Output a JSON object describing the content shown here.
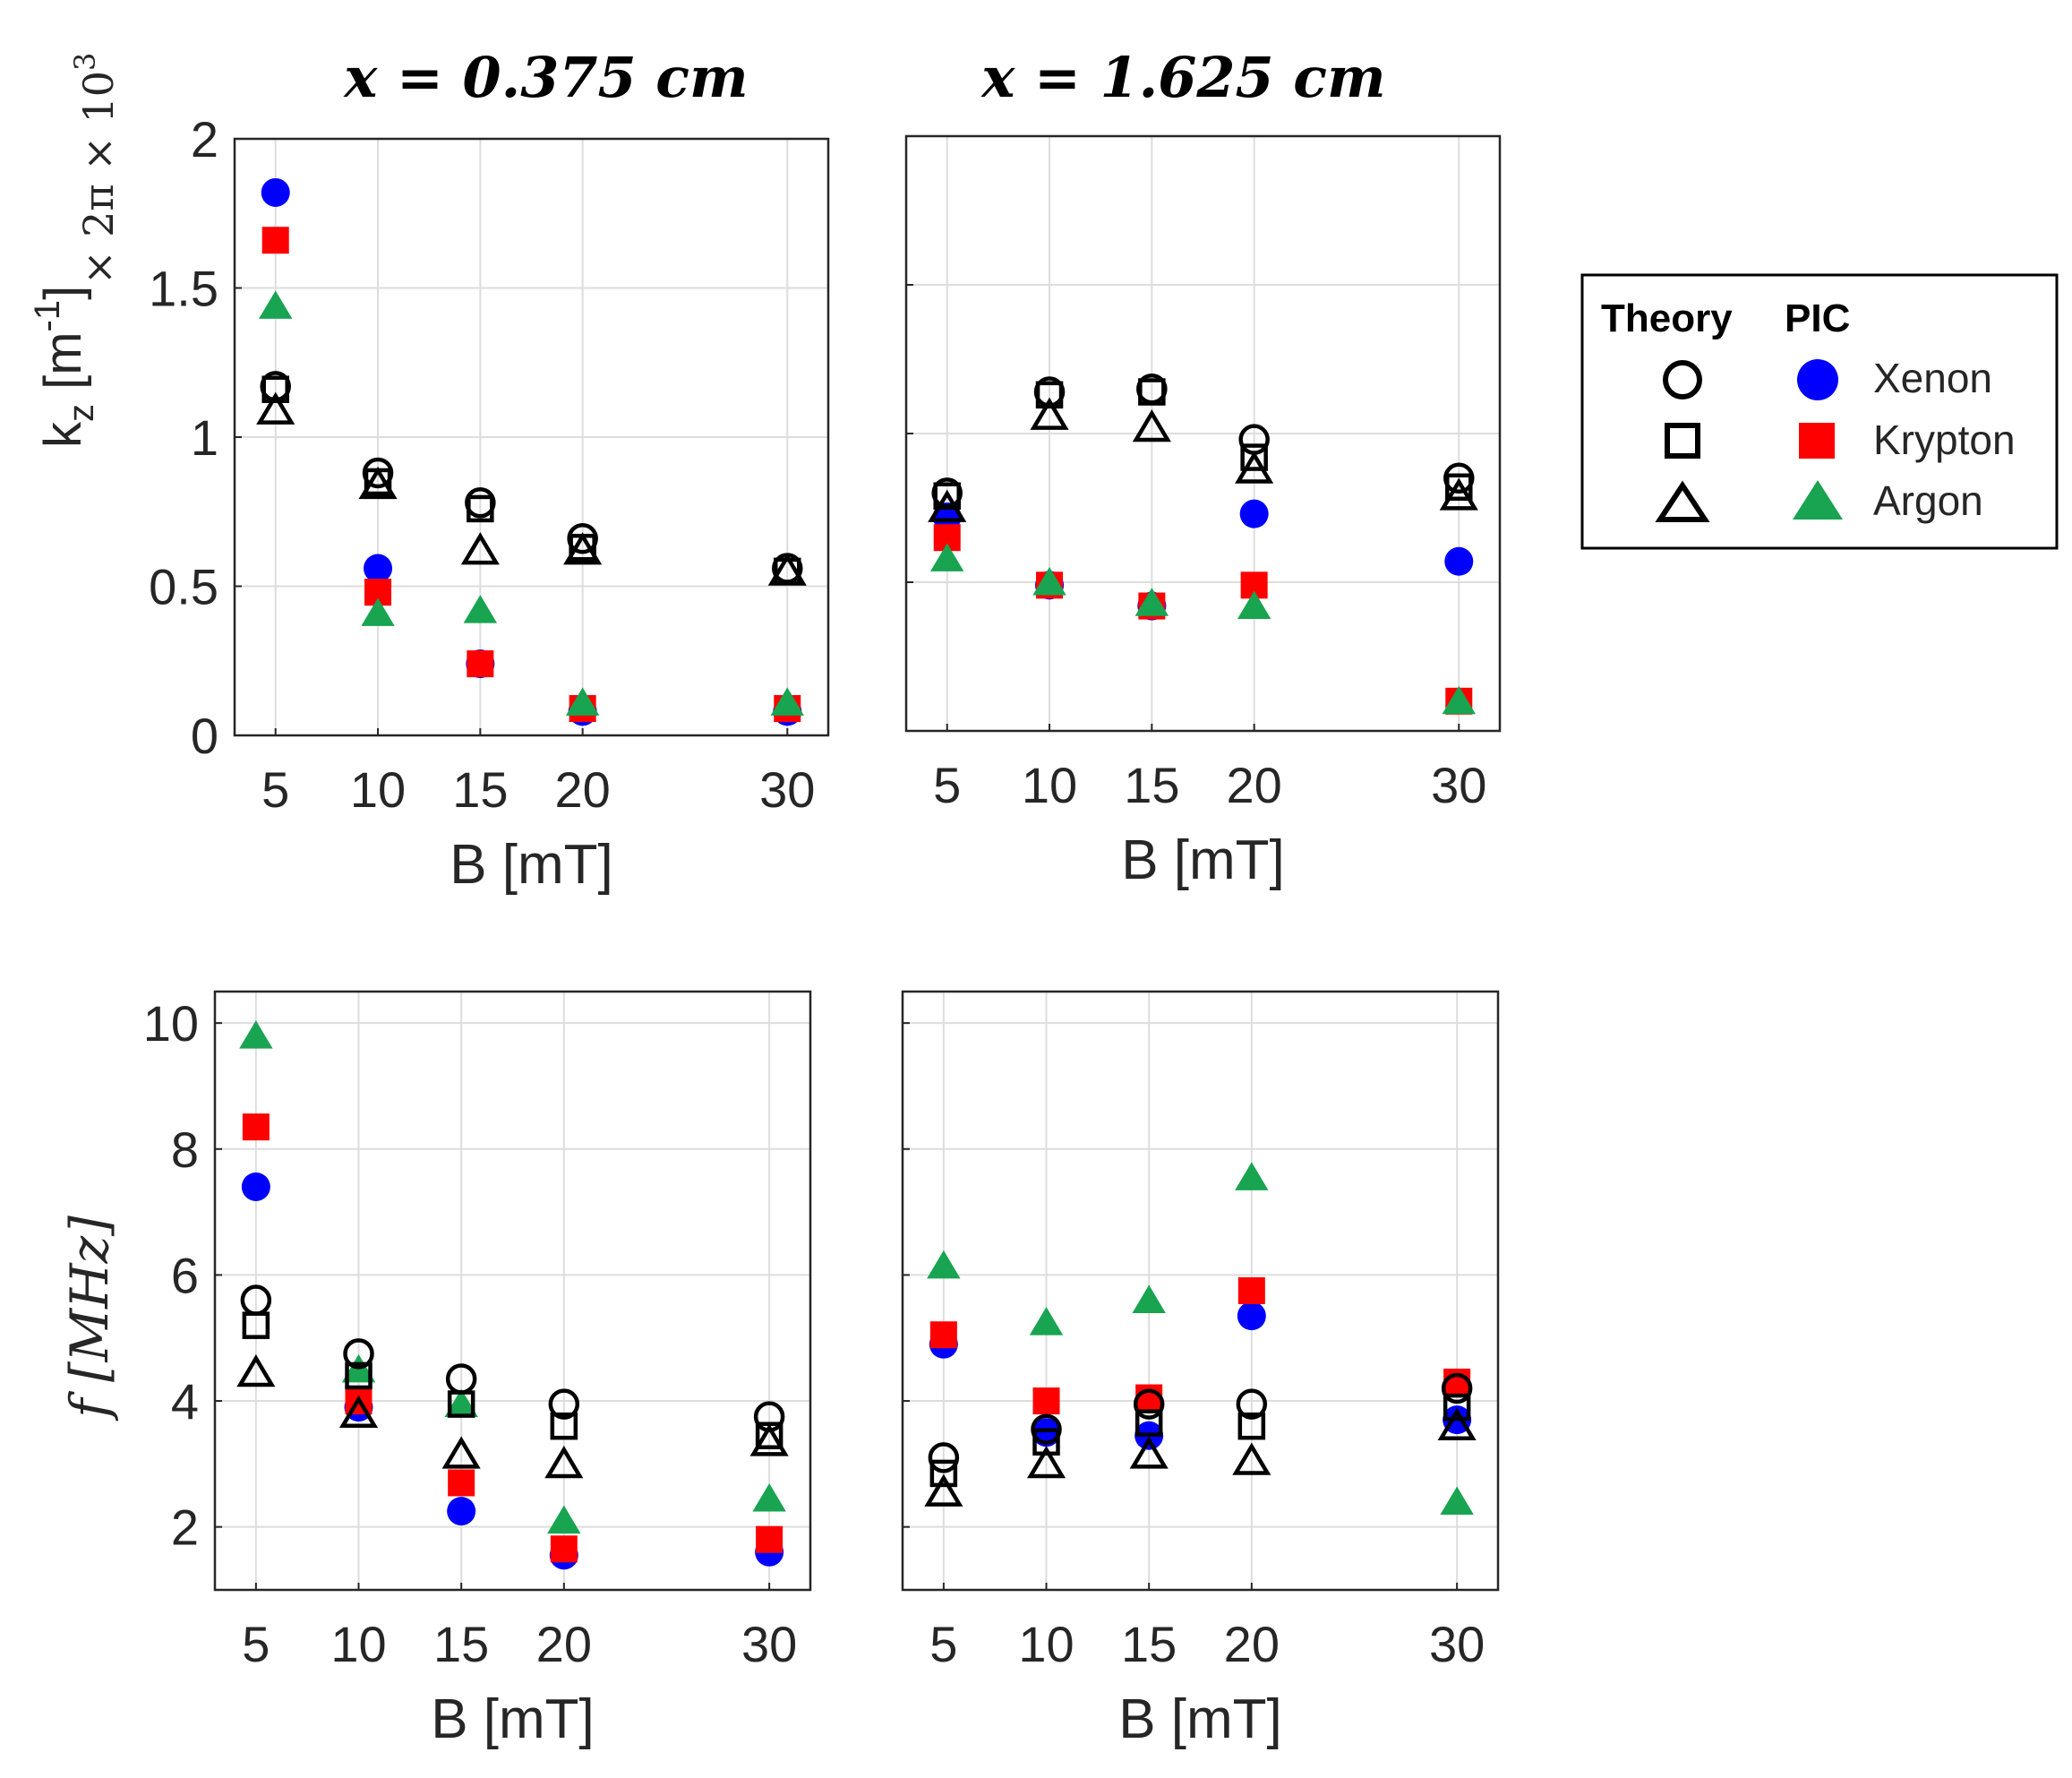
{
  "colors": {
    "xenon": "#0000ff",
    "krypton": "#ff0000",
    "argon": "#18a450",
    "theory": "#000000",
    "grid": "#dddddd",
    "axis": "#262626"
  },
  "legend": {
    "theory_header": "Theory",
    "pic_header": "PIC",
    "entries": [
      {
        "label": "Xenon",
        "theory_marker": "circle",
        "pic_marker": "circle",
        "pic_color": "#0000ff"
      },
      {
        "label": "Krypton",
        "theory_marker": "square",
        "pic_marker": "square",
        "pic_color": "#ff0000"
      },
      {
        "label": "Argon",
        "theory_marker": "triangle",
        "pic_marker": "triangle",
        "pic_color": "#18a450"
      }
    ]
  },
  "column_titles": [
    "x = 0.375 cm",
    "x = 1.625 cm"
  ],
  "chart_data": [
    {
      "type": "scatter",
      "title": "x = 0.375 cm",
      "xlabel": "B [mT]",
      "ylabel_main": "k",
      "ylabel_sub": "z",
      "ylabel_unit": " [m",
      "ylabel_exp": "-1",
      "ylabel_close": "]",
      "y_multiplier": "× 2π × 10",
      "y_multiplier_exp": "3",
      "x": [
        5,
        10,
        15,
        20,
        30
      ],
      "xlim": [
        3,
        32
      ],
      "ylim": [
        0,
        2
      ],
      "xticks": [
        "5",
        "10",
        "15",
        "20",
        "30"
      ],
      "yticks": [
        "0",
        "0.5",
        "1",
        "1.5",
        "2"
      ],
      "ytick_values": [
        0,
        0.5,
        1,
        1.5,
        2
      ],
      "series": [
        {
          "name": "Xenon PIC",
          "marker": "circle",
          "filled": true,
          "color": "#0000ff",
          "values": [
            1.82,
            0.56,
            0.24,
            0.08,
            0.08
          ]
        },
        {
          "name": "Krypton PIC",
          "marker": "square",
          "filled": true,
          "color": "#ff0000",
          "values": [
            1.66,
            0.48,
            0.24,
            0.09,
            0.09
          ]
        },
        {
          "name": "Argon PIC",
          "marker": "triangle",
          "filled": true,
          "color": "#18a450",
          "values": [
            1.44,
            0.41,
            0.42,
            0.11,
            0.11
          ]
        },
        {
          "name": "Xenon Theory",
          "marker": "circle",
          "filled": false,
          "color": "#000000",
          "values": [
            1.17,
            0.88,
            0.78,
            0.66,
            0.56
          ]
        },
        {
          "name": "Krypton Theory",
          "marker": "square",
          "filled": false,
          "color": "#000000",
          "values": [
            1.16,
            0.85,
            0.76,
            0.63,
            0.55
          ]
        },
        {
          "name": "Argon Theory",
          "marker": "triangle",
          "filled": false,
          "color": "#000000",
          "values": [
            1.09,
            0.84,
            0.62,
            0.62,
            0.55
          ]
        }
      ]
    },
    {
      "type": "scatter",
      "title": "x = 1.625 cm",
      "xlabel": "B [mT]",
      "x": [
        5,
        10,
        15,
        20,
        30
      ],
      "xlim": [
        3,
        32
      ],
      "ylim": [
        0,
        2
      ],
      "xticks": [
        "5",
        "10",
        "15",
        "20",
        "30"
      ],
      "yticks": [],
      "ytick_values": [
        0,
        0.5,
        1,
        1.5,
        2
      ],
      "series": [
        {
          "name": "Xenon PIC",
          "marker": "circle",
          "filled": true,
          "color": "#0000ff",
          "values": [
            0.72,
            0.49,
            0.42,
            0.73,
            0.57
          ]
        },
        {
          "name": "Krypton PIC",
          "marker": "square",
          "filled": true,
          "color": "#ff0000",
          "values": [
            0.65,
            0.49,
            0.42,
            0.49,
            0.1
          ]
        },
        {
          "name": "Argon PIC",
          "marker": "triangle",
          "filled": true,
          "color": "#18a450",
          "values": [
            0.58,
            0.5,
            0.43,
            0.42,
            0.1
          ]
        },
        {
          "name": "Xenon Theory",
          "marker": "circle",
          "filled": false,
          "color": "#000000",
          "values": [
            0.8,
            1.14,
            1.15,
            0.98,
            0.85
          ]
        },
        {
          "name": "Krypton Theory",
          "marker": "square",
          "filled": false,
          "color": "#000000",
          "values": [
            0.79,
            1.13,
            1.14,
            0.92,
            0.82
          ]
        },
        {
          "name": "Argon Theory",
          "marker": "triangle",
          "filled": false,
          "color": "#000000",
          "values": [
            0.75,
            1.06,
            1.02,
            0.88,
            0.79
          ]
        }
      ]
    },
    {
      "type": "scatter",
      "title": "",
      "xlabel": "B [mT]",
      "ylabel_italic": "f [MHz]",
      "x": [
        5,
        10,
        15,
        20,
        30
      ],
      "xlim": [
        3,
        32
      ],
      "ylim": [
        1,
        10.5
      ],
      "xticks": [
        "5",
        "10",
        "15",
        "20",
        "30"
      ],
      "yticks": [
        "2",
        "4",
        "6",
        "8",
        "10"
      ],
      "ytick_values": [
        2,
        4,
        6,
        8,
        10
      ],
      "series": [
        {
          "name": "Xenon PIC",
          "marker": "circle",
          "filled": true,
          "color": "#0000ff",
          "values": [
            7.4,
            3.9,
            2.25,
            1.55,
            1.6
          ]
        },
        {
          "name": "Krypton PIC",
          "marker": "square",
          "filled": true,
          "color": "#ff0000",
          "values": [
            8.35,
            4.0,
            2.7,
            1.65,
            1.8
          ]
        },
        {
          "name": "Argon PIC",
          "marker": "triangle",
          "filled": true,
          "color": "#18a450",
          "values": [
            9.8,
            4.5,
            3.95,
            2.1,
            2.45
          ]
        },
        {
          "name": "Xenon Theory",
          "marker": "circle",
          "filled": false,
          "color": "#000000",
          "values": [
            5.6,
            4.75,
            4.35,
            3.95,
            3.75
          ]
        },
        {
          "name": "Krypton Theory",
          "marker": "square",
          "filled": false,
          "color": "#000000",
          "values": [
            5.2,
            4.4,
            3.95,
            3.6,
            3.45
          ]
        },
        {
          "name": "Argon Theory",
          "marker": "triangle",
          "filled": false,
          "color": "#000000",
          "values": [
            4.45,
            3.8,
            3.15,
            3.0,
            3.35
          ]
        }
      ]
    },
    {
      "type": "scatter",
      "title": "",
      "xlabel": "B [mT]",
      "x": [
        5,
        10,
        15,
        20,
        30
      ],
      "xlim": [
        3,
        32
      ],
      "ylim": [
        1,
        10.5
      ],
      "xticks": [
        "5",
        "10",
        "15",
        "20",
        "30"
      ],
      "yticks": [],
      "ytick_values": [
        2,
        4,
        6,
        8,
        10
      ],
      "series": [
        {
          "name": "Xenon PIC",
          "marker": "circle",
          "filled": true,
          "color": "#0000ff",
          "values": [
            4.9,
            3.5,
            3.45,
            5.35,
            3.7
          ]
        },
        {
          "name": "Krypton PIC",
          "marker": "square",
          "filled": true,
          "color": "#ff0000",
          "values": [
            5.05,
            4.0,
            4.05,
            5.75,
            4.3
          ]
        },
        {
          "name": "Argon PIC",
          "marker": "triangle",
          "filled": true,
          "color": "#18a450",
          "values": [
            6.15,
            5.25,
            5.6,
            7.55,
            2.4
          ]
        },
        {
          "name": "Xenon Theory",
          "marker": "circle",
          "filled": false,
          "color": "#000000",
          "values": [
            3.1,
            3.55,
            3.95,
            3.95,
            4.2
          ]
        },
        {
          "name": "Krypton Theory",
          "marker": "square",
          "filled": false,
          "color": "#000000",
          "values": [
            2.85,
            3.35,
            3.65,
            3.6,
            3.9
          ]
        },
        {
          "name": "Argon Theory",
          "marker": "triangle",
          "filled": false,
          "color": "#000000",
          "values": [
            2.55,
            3.0,
            3.15,
            3.05,
            3.6
          ]
        }
      ]
    }
  ]
}
